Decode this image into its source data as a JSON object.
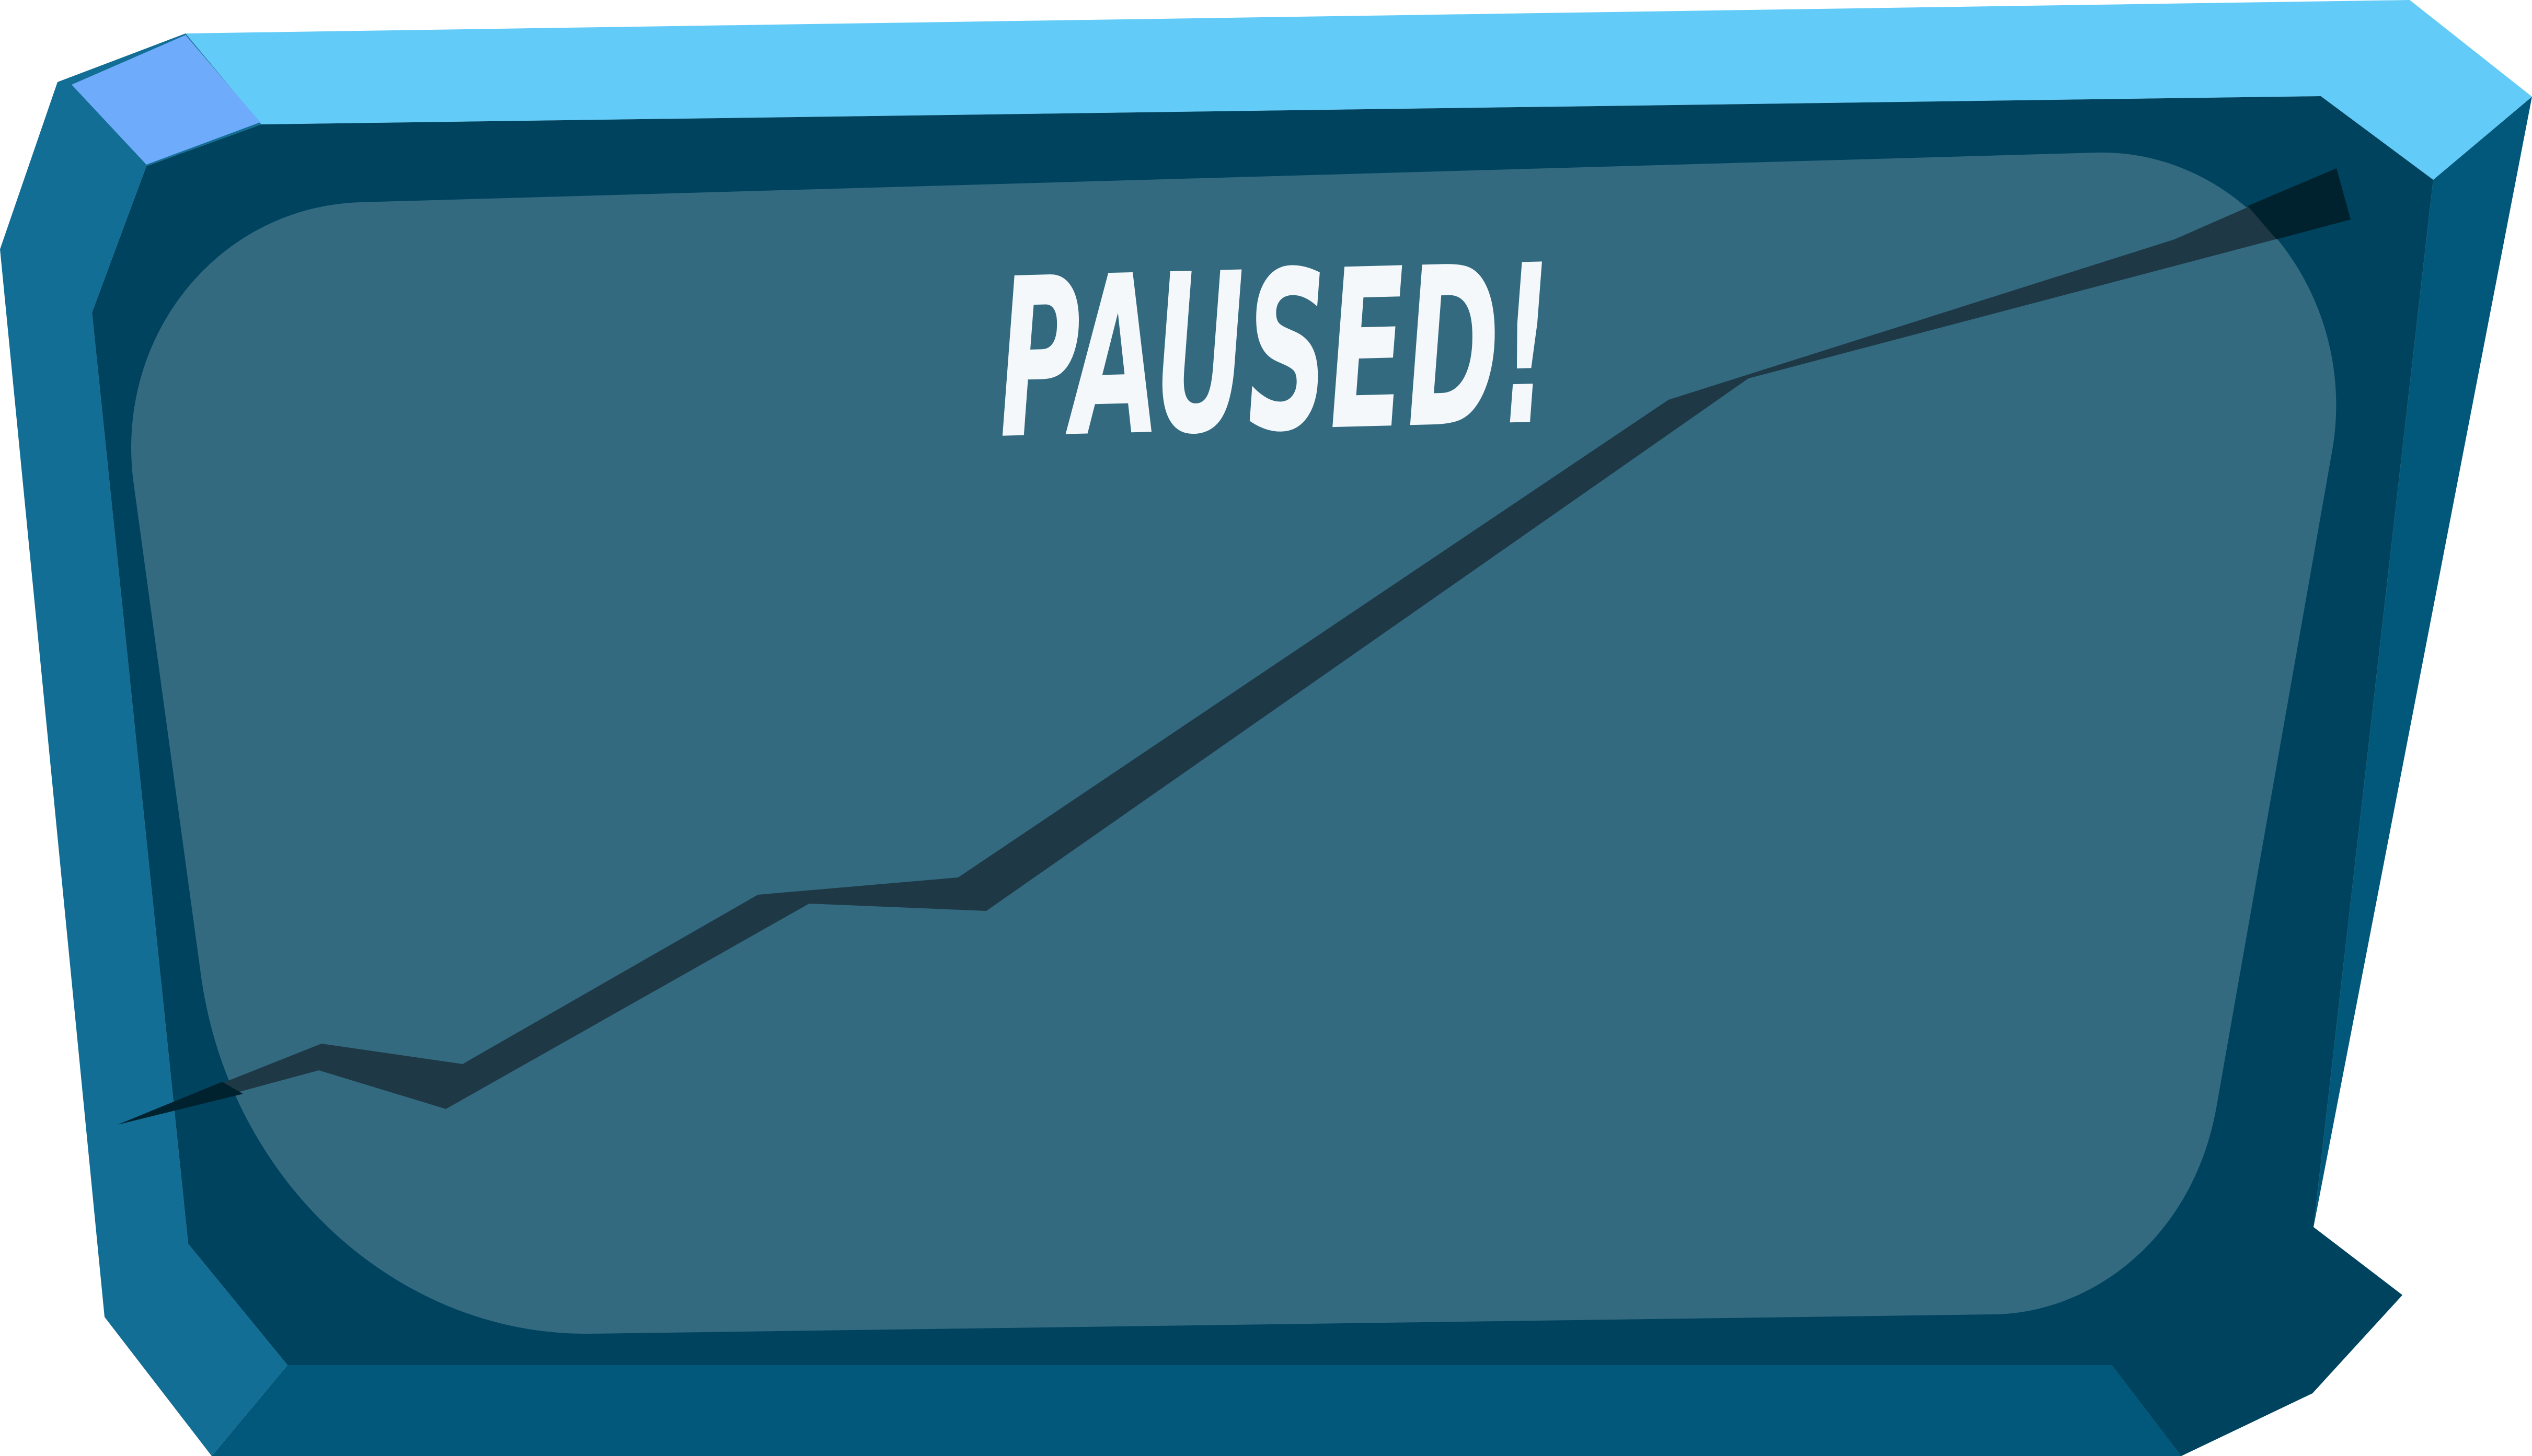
{
  "pause_screen": {
    "title": "PAUSED!"
  },
  "colors": {
    "page_background": "#ffffff",
    "frame_top_highlight": "#62cbf7",
    "frame_corner_highlight": "#6eabfb",
    "frame_left_face": "#136e95",
    "frame_right_face": "#02587b",
    "frame_bottom_face": "#02587b",
    "frame_inner_rim": "#00435e",
    "screen_glass": "#336a80",
    "crack_shadow": "#1e3845",
    "crack_dark_tip": "#00222f",
    "title_text": "#f4f8fb"
  },
  "icons": {
    "frame": "beveled-panel-frame",
    "crack": "glass-crack"
  }
}
